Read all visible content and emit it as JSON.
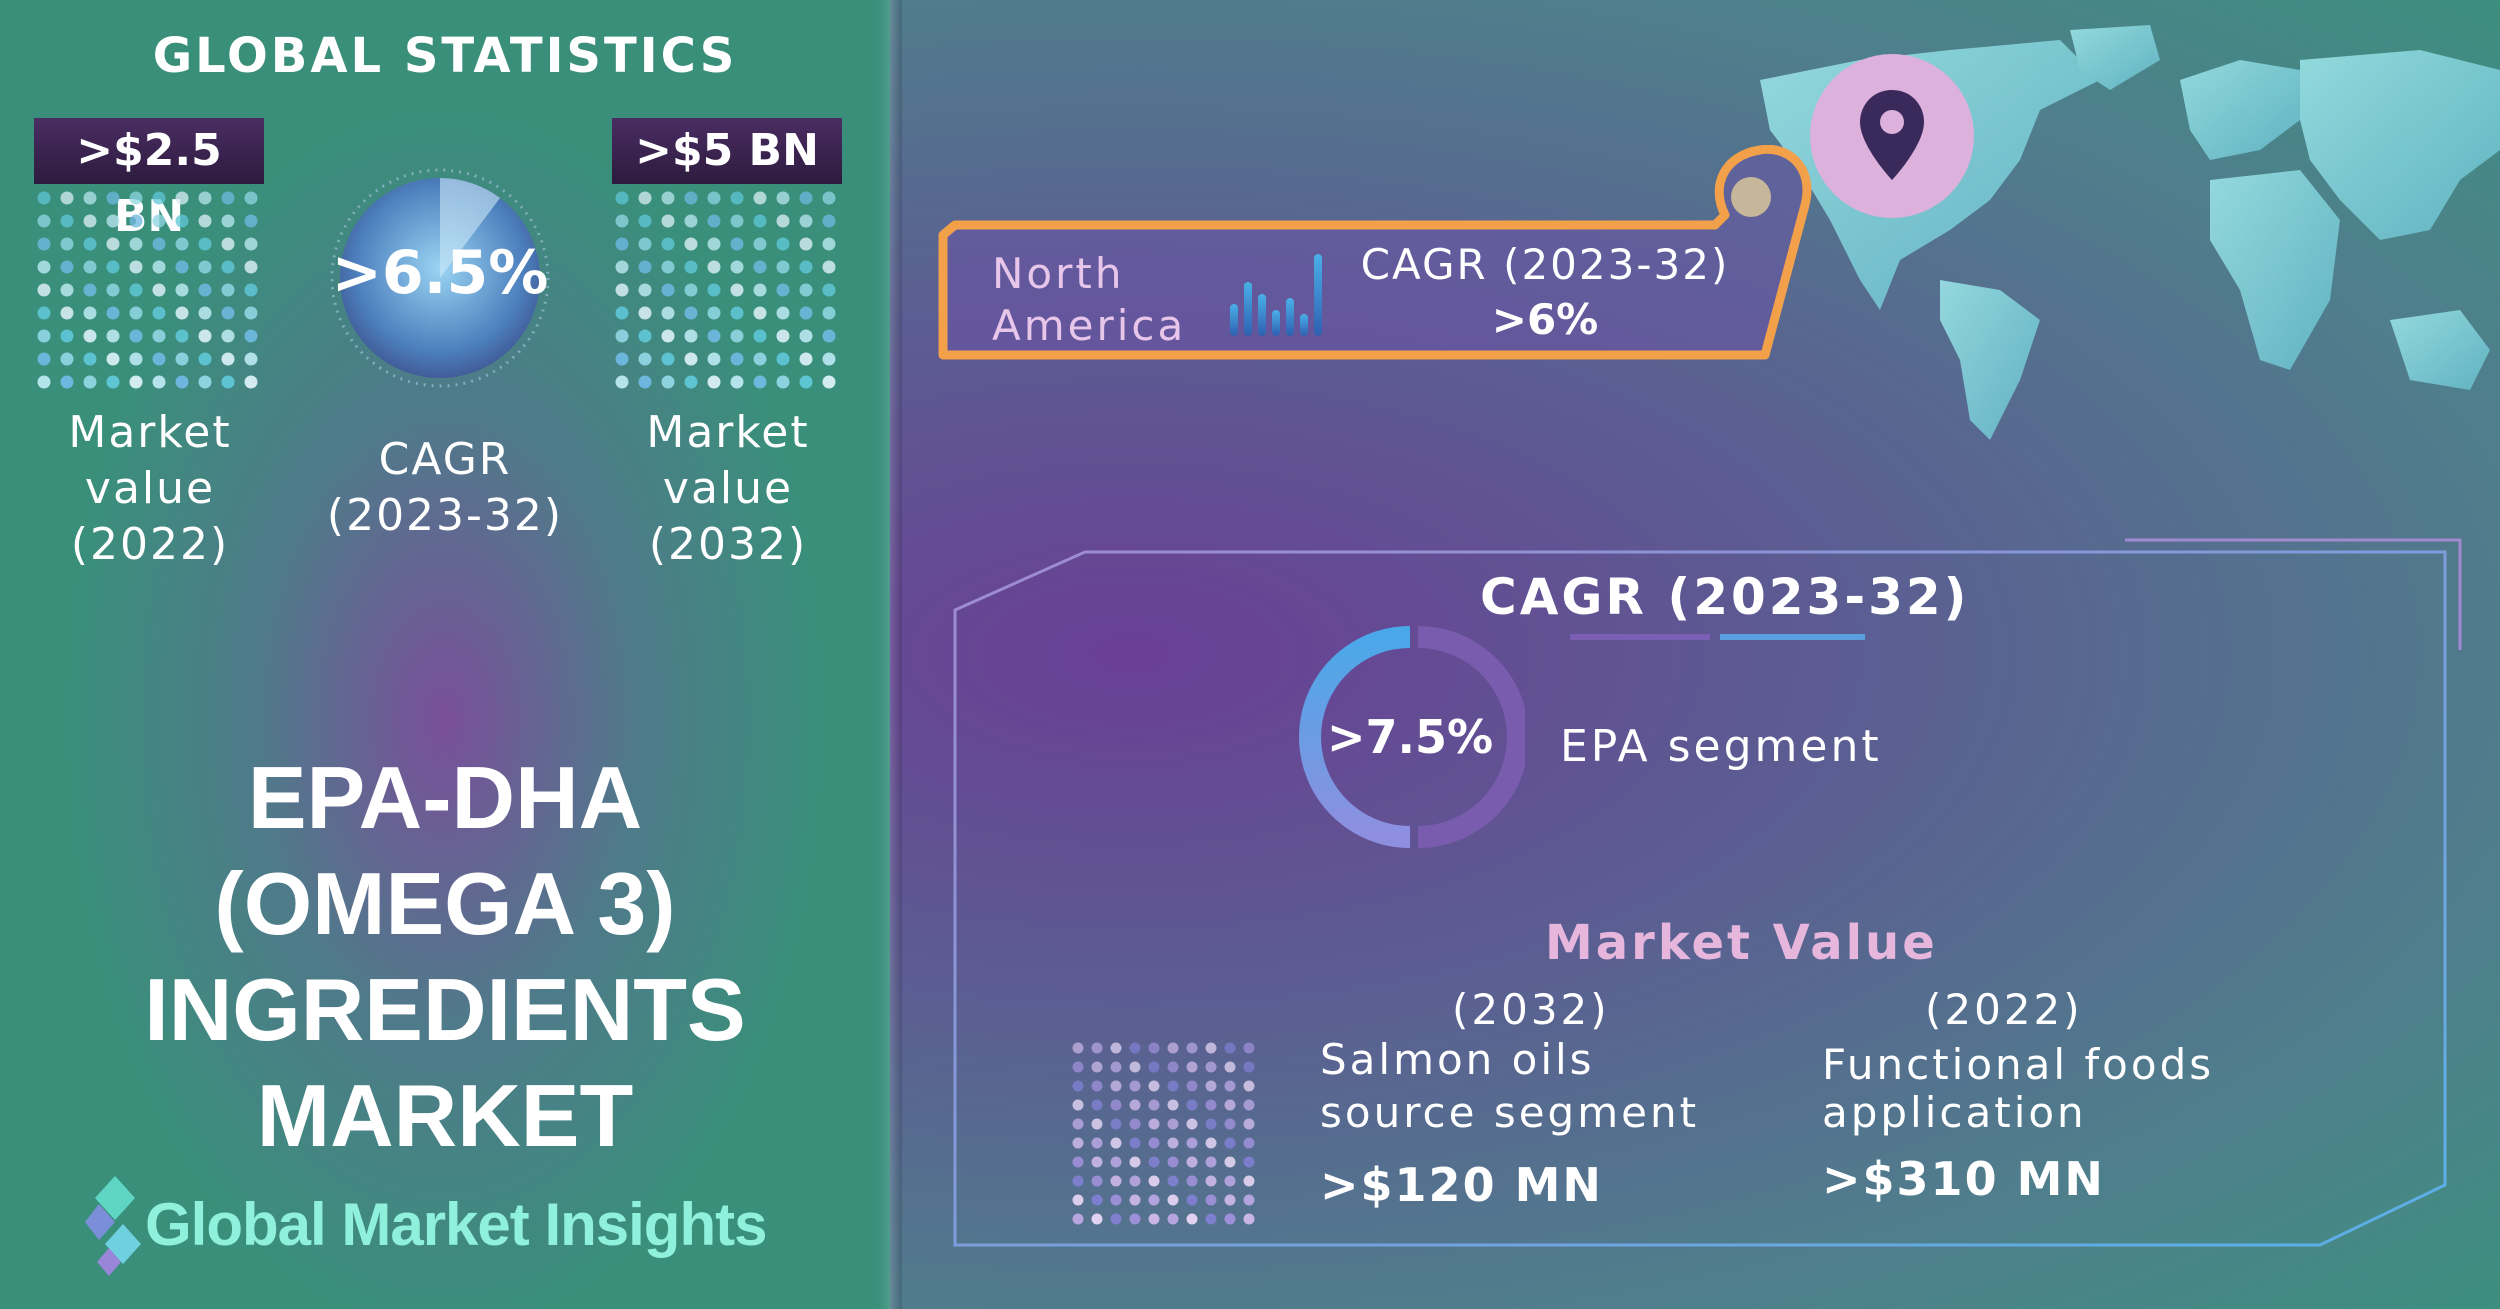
{
  "global_stats": {
    "title": "GLOBAL STATISTICS",
    "market_value_2022": {
      "value": ">$2.5 BN",
      "label_line1": "Market",
      "label_line2": "value",
      "label_line3": "(2022)"
    },
    "cagr": {
      "value": ">6.5%",
      "label_line1": "CAGR",
      "label_line2": "(2023-32)"
    },
    "market_value_2032": {
      "value": ">$5 BN",
      "label_line1": "Market",
      "label_line2": "value",
      "label_line3": "(2032)"
    }
  },
  "headline": {
    "line1": "EPA-DHA",
    "line2": "(OMEGA 3)",
    "line3": "INGREDIENTS",
    "line4": "MARKET"
  },
  "logo": {
    "text": "Global Market Insights"
  },
  "region": {
    "name_line1": "North",
    "name_line2": "America",
    "cagr_label": "CAGR (2023-32)",
    "cagr_value": ">6%"
  },
  "segment": {
    "cagr_title": "CAGR (2023-32)",
    "epa_value": ">7.5%",
    "epa_label": "EPA segment",
    "epa_fraction": 0.5,
    "market_value_title": "Market Value",
    "salmon": {
      "year": "(2032)",
      "line1": "Salmon oils",
      "line2": "source segment",
      "value": ">$120 MN"
    },
    "functional": {
      "year": "(2022)",
      "line1": "Functional foods",
      "line2": "application",
      "value": ">$310 MN"
    }
  },
  "colors": {
    "accent_orange": "#f2a04a",
    "teal": "#3a8f7b",
    "purple": "#6a3f95",
    "pink": "#e6b6dd",
    "pin_bg": "#dcb1db",
    "pin": "#3a2a5c"
  },
  "icons": [
    "location-pin-icon",
    "bar-chart-icon",
    "world-map",
    "logo-diamond-icon"
  ]
}
